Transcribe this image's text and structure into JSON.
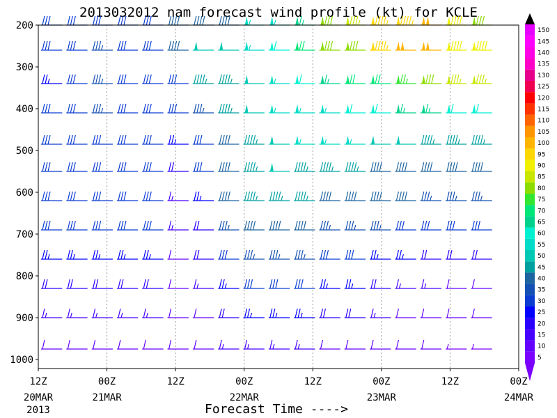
{
  "chart_data": {
    "type": "wind-barb-profile",
    "title": "2013032012 nam forecast wind profile (kt) for KCLE",
    "xlabel": "Forecast Time ---->",
    "year_label": "2013",
    "y_ticks": [
      {
        "p": 200,
        "label": "200"
      },
      {
        "p": 300,
        "label": "300"
      },
      {
        "p": 400,
        "label": "400"
      },
      {
        "p": 500,
        "label": "500"
      },
      {
        "p": 600,
        "label": "600"
      },
      {
        "p": 700,
        "label": "700"
      },
      {
        "p": 800,
        "label": "800"
      },
      {
        "p": 900,
        "label": "900"
      },
      {
        "p": 1000,
        "label": "1000"
      }
    ],
    "x_ticks": [
      {
        "h": 0,
        "top": "12Z",
        "bottom": "20MAR"
      },
      {
        "h": 12,
        "top": "00Z",
        "bottom": "21MAR"
      },
      {
        "h": 24,
        "top": "12Z",
        "bottom": ""
      },
      {
        "h": 36,
        "top": "00Z",
        "bottom": "22MAR"
      },
      {
        "h": 48,
        "top": "12Z",
        "bottom": ""
      },
      {
        "h": 60,
        "top": "00Z",
        "bottom": "23MAR"
      },
      {
        "h": 72,
        "top": "12Z",
        "bottom": ""
      },
      {
        "h": 84,
        "top": "00Z",
        "bottom": "24MAR"
      }
    ],
    "xlim_hours": [
      0,
      84
    ],
    "ylim_hPa": [
      200,
      1050
    ],
    "grid": "dotted vertical lines every 12 h",
    "colorbar": {
      "units": "kt",
      "labels": [
        5,
        10,
        15,
        20,
        25,
        30,
        35,
        40,
        45,
        50,
        55,
        60,
        65,
        70,
        75,
        80,
        85,
        90,
        95,
        100,
        105,
        110,
        115,
        120,
        125,
        130,
        135,
        140,
        145,
        150
      ],
      "colors": [
        "#7a00ff",
        "#6400ff",
        "#4600ff",
        "#2a00ff",
        "#0000ff",
        "#0a3cd2",
        "#1450b4",
        "#1e64a0",
        "#00a0a0",
        "#00c8b4",
        "#00dcc8",
        "#00f0d2",
        "#00d28c",
        "#00e678",
        "#32e632",
        "#8cdc00",
        "#c8e600",
        "#f0f000",
        "#ffd700",
        "#ffb400",
        "#ff9600",
        "#ff6400",
        "#ff3200",
        "#ff0000",
        "#f00050",
        "#e6008c",
        "#ff00c8",
        "#ff00e6",
        "#ff00ff",
        "#e600ff"
      ]
    },
    "levels_hPa": [
      200,
      260,
      340,
      410,
      485,
      550,
      620,
      690,
      760,
      830,
      900,
      975
    ],
    "speed_kt": [
      [
        28,
        28,
        28,
        28,
        28,
        40,
        40,
        40,
        55,
        55,
        65,
        80,
        85,
        95,
        95,
        100,
        90,
        80,
        0
      ],
      [
        30,
        30,
        33,
        30,
        30,
        40,
        50,
        50,
        55,
        60,
        70,
        80,
        80,
        95,
        100,
        100,
        90,
        90,
        0
      ],
      [
        25,
        30,
        33,
        30,
        30,
        30,
        45,
        45,
        50,
        55,
        60,
        65,
        70,
        70,
        75,
        80,
        85,
        85,
        0
      ],
      [
        30,
        30,
        33,
        30,
        30,
        28,
        35,
        45,
        50,
        55,
        55,
        55,
        60,
        60,
        65,
        65,
        60,
        60,
        0
      ],
      [
        30,
        30,
        30,
        30,
        30,
        25,
        30,
        40,
        45,
        50,
        55,
        55,
        55,
        50,
        50,
        45,
        45,
        45,
        0
      ],
      [
        30,
        30,
        30,
        30,
        30,
        20,
        30,
        40,
        45,
        50,
        45,
        45,
        45,
        40,
        40,
        40,
        40,
        40,
        0
      ],
      [
        30,
        30,
        30,
        30,
        30,
        15,
        25,
        40,
        45,
        45,
        45,
        40,
        40,
        40,
        40,
        35,
        35,
        35,
        0
      ],
      [
        28,
        28,
        28,
        28,
        28,
        15,
        20,
        35,
        40,
        40,
        40,
        35,
        35,
        35,
        30,
        30,
        30,
        30,
        0
      ],
      [
        25,
        25,
        25,
        25,
        25,
        12,
        18,
        30,
        35,
        35,
        35,
        30,
        30,
        25,
        25,
        20,
        20,
        20,
        0
      ],
      [
        20,
        20,
        20,
        20,
        20,
        10,
        15,
        25,
        30,
        30,
        30,
        25,
        25,
        20,
        15,
        15,
        10,
        10,
        0
      ],
      [
        15,
        15,
        15,
        15,
        15,
        10,
        12,
        20,
        25,
        25,
        25,
        20,
        20,
        15,
        10,
        10,
        8,
        8,
        0
      ],
      [
        12,
        12,
        12,
        12,
        12,
        8,
        10,
        15,
        15,
        15,
        15,
        12,
        12,
        10,
        8,
        8,
        5,
        5,
        0
      ]
    ]
  }
}
